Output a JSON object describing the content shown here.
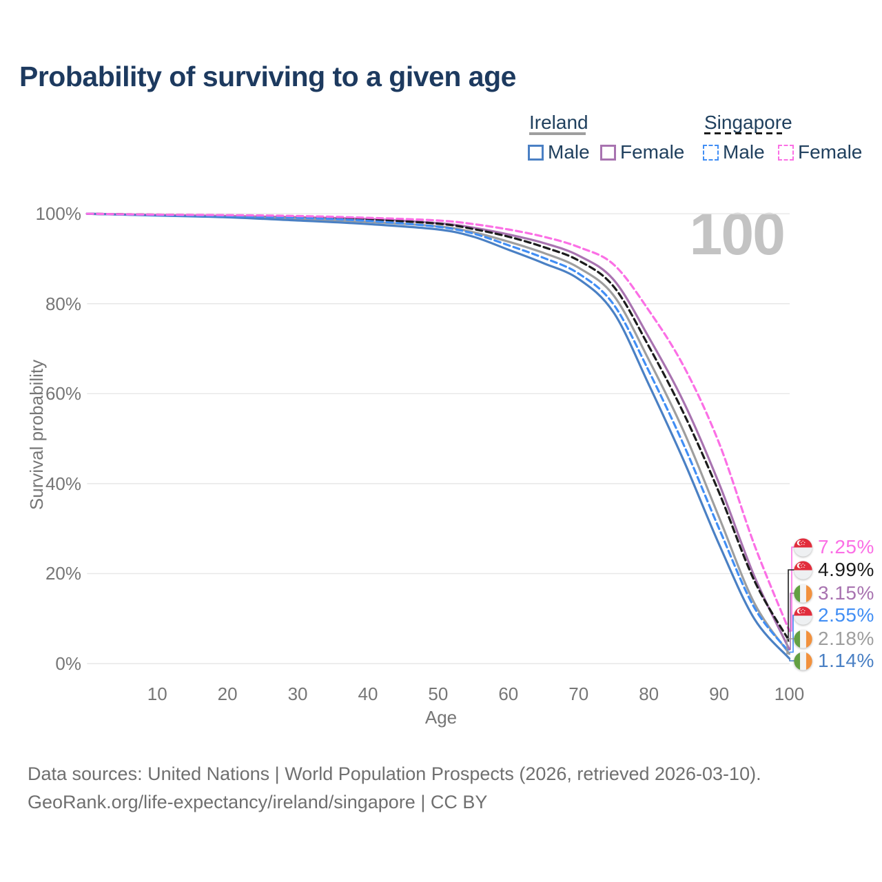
{
  "title": "Probability of surviving to a given age",
  "age_counter": "100",
  "legend": {
    "ireland": {
      "label": "Ireland",
      "male": "Male",
      "female": "Female"
    },
    "singapore": {
      "label": "Singapore",
      "male": "Male",
      "female": "Female"
    }
  },
  "chart_data": {
    "type": "line",
    "title": "Probability of surviving to a given age",
    "xlabel": "Age",
    "ylabel": "Survival probability",
    "xlim": [
      0,
      100
    ],
    "ylim": [
      0,
      100
    ],
    "grid": "horizontal",
    "x_ticks": [
      10,
      20,
      30,
      40,
      50,
      60,
      70,
      80,
      90,
      100
    ],
    "y_ticks": [
      {
        "v": 0,
        "label": "0%"
      },
      {
        "v": 20,
        "label": "20%"
      },
      {
        "v": 40,
        "label": "40%"
      },
      {
        "v": 60,
        "label": "60%"
      },
      {
        "v": 80,
        "label": "80%"
      },
      {
        "v": 100,
        "label": "100%"
      }
    ],
    "series": [
      {
        "id": "ireland-female",
        "name": "Ireland Female",
        "color": "#a873b0",
        "dashed": false,
        "points": [
          [
            0,
            100
          ],
          [
            10,
            99.7
          ],
          [
            20,
            99.5
          ],
          [
            30,
            99.2
          ],
          [
            40,
            98.8
          ],
          [
            50,
            97.9
          ],
          [
            55,
            96.9
          ],
          [
            60,
            95.4
          ],
          [
            65,
            93.5
          ],
          [
            70,
            90.7
          ],
          [
            75,
            85.3
          ],
          [
            80,
            72.5
          ],
          [
            85,
            58.0
          ],
          [
            90,
            40.0
          ],
          [
            95,
            19.5
          ],
          [
            100,
            3.15
          ]
        ]
      },
      {
        "id": "ireland-both",
        "name": "Ireland (both sexes)",
        "color": "#9e9e9e",
        "dashed": false,
        "points": [
          [
            0,
            100
          ],
          [
            10,
            99.7
          ],
          [
            20,
            99.4
          ],
          [
            30,
            98.9
          ],
          [
            40,
            98.2
          ],
          [
            50,
            97.2
          ],
          [
            55,
            95.9
          ],
          [
            60,
            93.8
          ],
          [
            65,
            91.3
          ],
          [
            70,
            88.0
          ],
          [
            75,
            81.8
          ],
          [
            80,
            67.5
          ],
          [
            85,
            51.5
          ],
          [
            90,
            32.5
          ],
          [
            95,
            13.5
          ],
          [
            100,
            2.18
          ]
        ]
      },
      {
        "id": "ireland-male",
        "name": "Ireland Male",
        "color": "#4a80c4",
        "dashed": false,
        "points": [
          [
            0,
            100
          ],
          [
            10,
            99.6
          ],
          [
            20,
            99.2
          ],
          [
            30,
            98.5
          ],
          [
            40,
            97.7
          ],
          [
            50,
            96.5
          ],
          [
            55,
            94.9
          ],
          [
            60,
            92.0
          ],
          [
            65,
            89.0
          ],
          [
            70,
            85.5
          ],
          [
            75,
            78.0
          ],
          [
            80,
            62.0
          ],
          [
            85,
            45.0
          ],
          [
            90,
            26.5
          ],
          [
            95,
            10.0
          ],
          [
            100,
            1.14
          ]
        ]
      },
      {
        "id": "singapore-both",
        "name": "Singapore (both sexes)",
        "color": "#1c1c1c",
        "dashed": true,
        "points": [
          [
            0,
            100
          ],
          [
            10,
            99.8
          ],
          [
            20,
            99.6
          ],
          [
            30,
            99.2
          ],
          [
            40,
            98.7
          ],
          [
            50,
            97.8
          ],
          [
            55,
            96.6
          ],
          [
            60,
            94.9
          ],
          [
            65,
            92.6
          ],
          [
            70,
            89.6
          ],
          [
            75,
            83.8
          ],
          [
            80,
            70.5
          ],
          [
            85,
            55.5
          ],
          [
            90,
            38.0
          ],
          [
            95,
            18.5
          ],
          [
            100,
            4.99
          ]
        ]
      },
      {
        "id": "singapore-male",
        "name": "Singapore Male",
        "color": "#418ef4",
        "dashed": true,
        "points": [
          [
            0,
            100
          ],
          [
            10,
            99.7
          ],
          [
            20,
            99.5
          ],
          [
            30,
            99.1
          ],
          [
            40,
            98.4
          ],
          [
            50,
            97.1
          ],
          [
            55,
            95.6
          ],
          [
            60,
            93.0
          ],
          [
            65,
            90.2
          ],
          [
            70,
            86.7
          ],
          [
            75,
            79.8
          ],
          [
            80,
            65.0
          ],
          [
            85,
            48.5
          ],
          [
            90,
            30.0
          ],
          [
            95,
            12.5
          ],
          [
            100,
            2.55
          ]
        ]
      },
      {
        "id": "singapore-female",
        "name": "Singapore Female",
        "color": "#fb6fe5",
        "dashed": true,
        "points": [
          [
            0,
            100
          ],
          [
            10,
            99.8
          ],
          [
            20,
            99.7
          ],
          [
            30,
            99.5
          ],
          [
            40,
            99.1
          ],
          [
            50,
            98.5
          ],
          [
            55,
            97.7
          ],
          [
            60,
            96.5
          ],
          [
            65,
            94.9
          ],
          [
            70,
            92.6
          ],
          [
            75,
            88.7
          ],
          [
            80,
            78.5
          ],
          [
            85,
            66.0
          ],
          [
            90,
            49.0
          ],
          [
            95,
            26.5
          ],
          [
            100,
            7.25
          ]
        ]
      }
    ],
    "end_labels": [
      {
        "series": "singapore-female",
        "flag": "sg",
        "value": "7.25%"
      },
      {
        "series": "singapore-both",
        "flag": "sg",
        "value": "4.99%"
      },
      {
        "series": "ireland-female",
        "flag": "ie",
        "value": "3.15%"
      },
      {
        "series": "singapore-male",
        "flag": "sg",
        "value": "2.55%"
      },
      {
        "series": "ireland-both",
        "flag": "ie",
        "value": "2.18%"
      },
      {
        "series": "ireland-male",
        "flag": "ie",
        "value": "1.14%"
      }
    ],
    "flag_colors": {
      "sg_red": "#e12d3c",
      "sg_white": "#eef0f2",
      "ie_green": "#63a042",
      "ie_white": "#f2f3f4",
      "ie_orange": "#f2913d"
    }
  },
  "footer": {
    "line1": "Data sources: United Nations | World Population Prospects (2026, retrieved 2026-03-10).",
    "line2": "GeoRank.org/life-expectancy/ireland/singapore | CC BY"
  }
}
